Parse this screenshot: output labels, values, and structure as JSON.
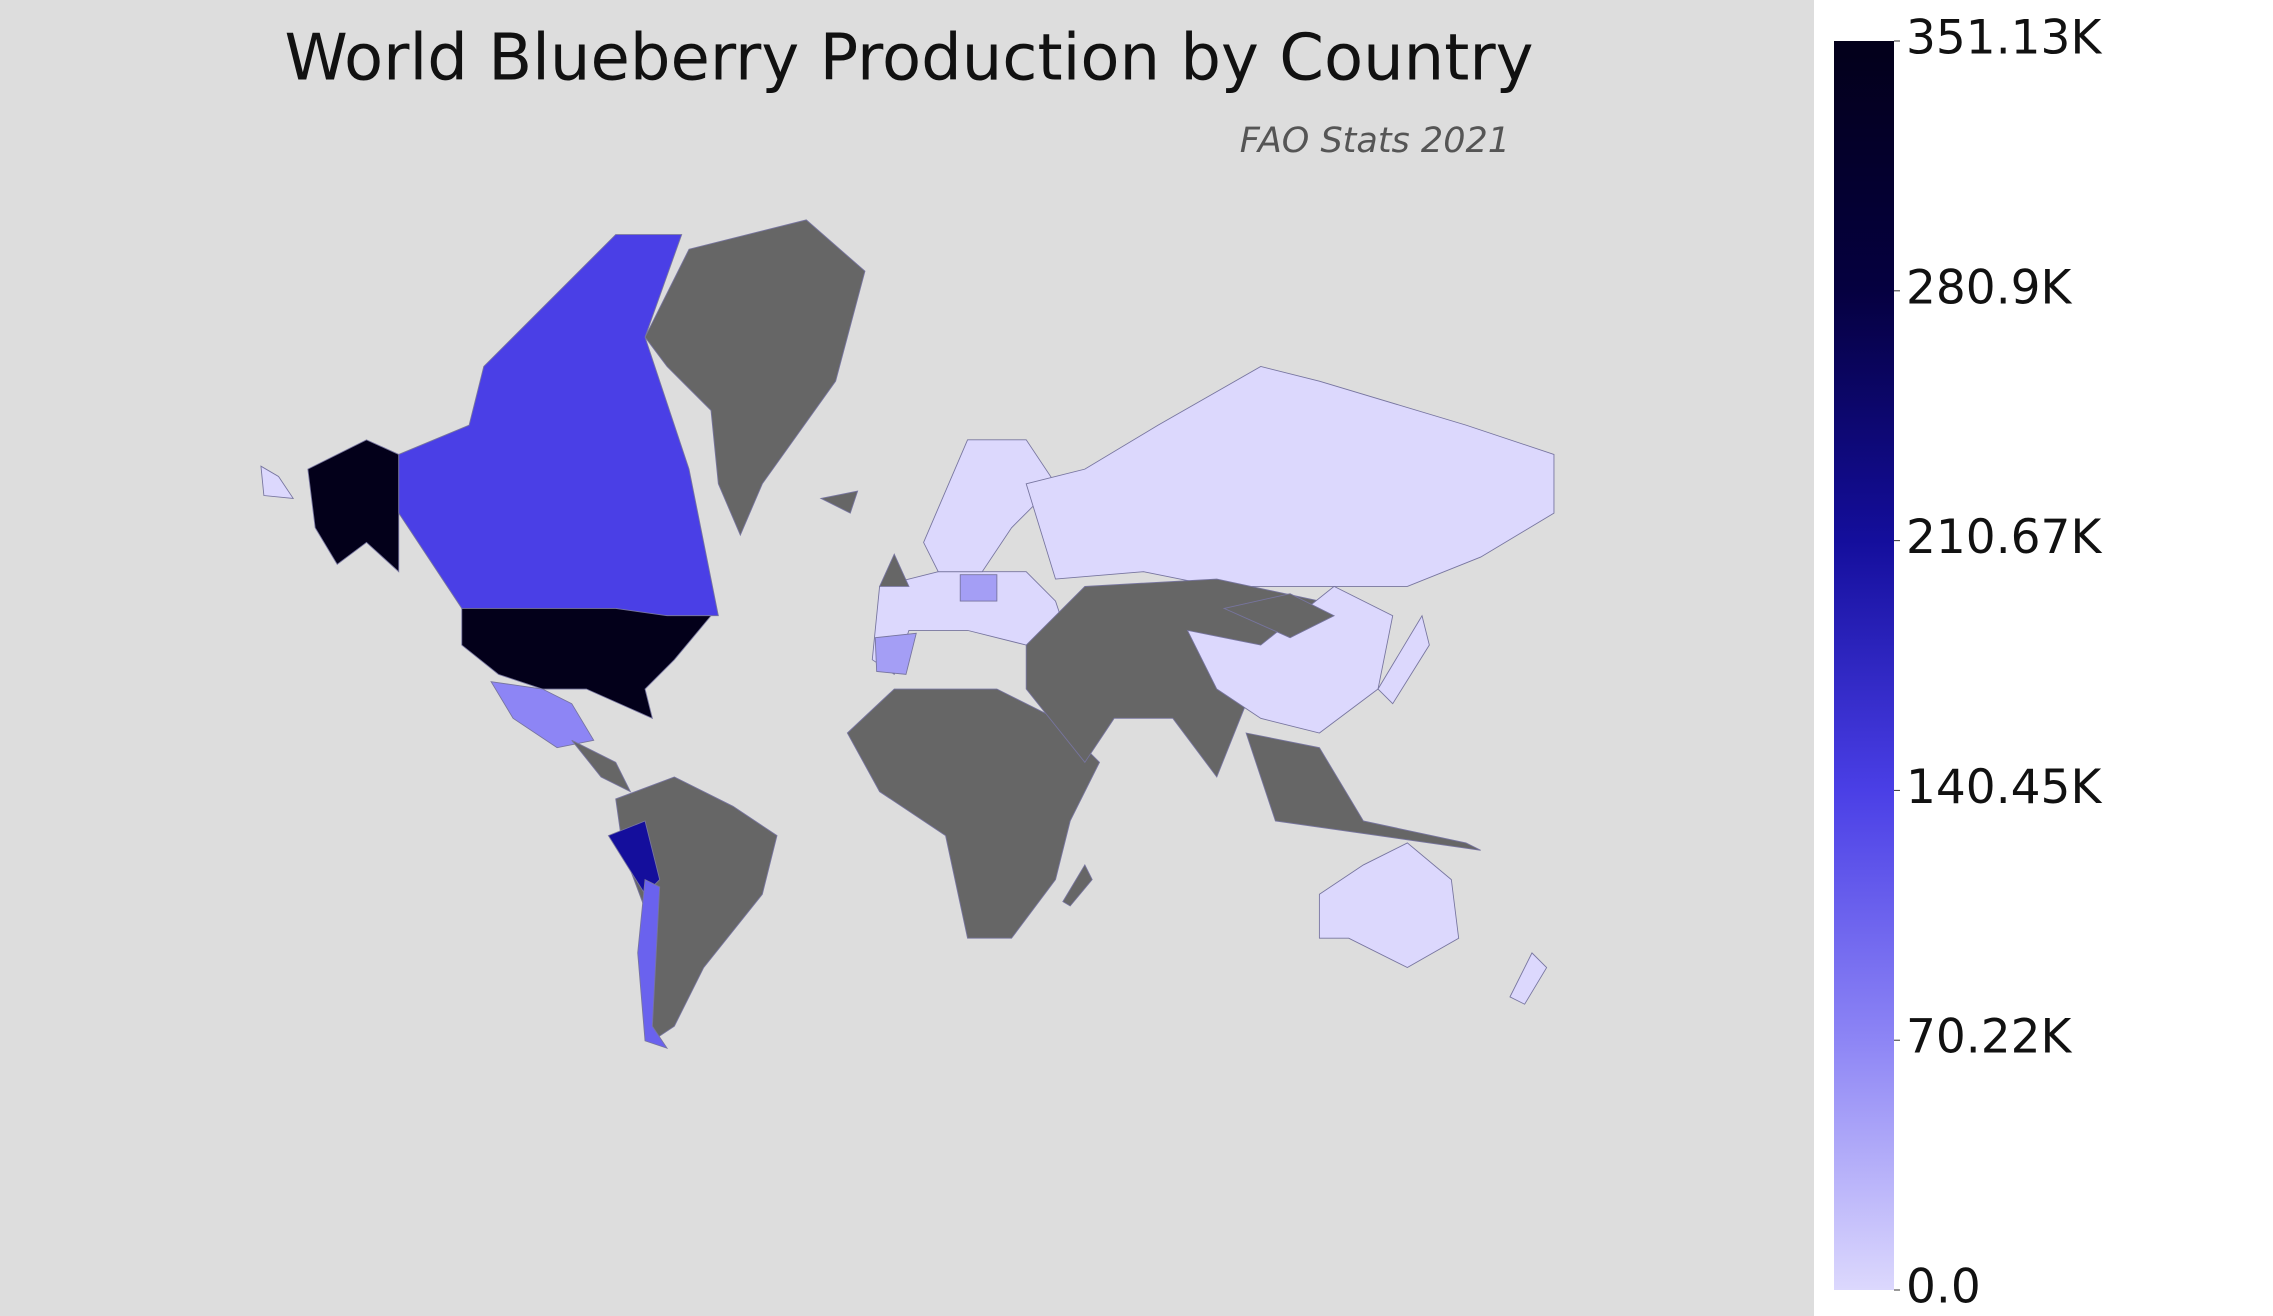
{
  "chart_data": {
    "type": "choropleth",
    "title": "World Blueberry Production by Country",
    "subtitle": "FAO Stats 2021",
    "colorscale": [
      "#dcd8fd",
      "#8d85f5",
      "#4a3fe6",
      "#140e9c",
      "#050040",
      "#03001a"
    ],
    "zlim": [
      0,
      351130
    ],
    "zticks": [
      {
        "value": 0,
        "label": "0.0"
      },
      {
        "value": 70220,
        "label": "70.22K"
      },
      {
        "value": 140450,
        "label": "140.45K"
      },
      {
        "value": 210670,
        "label": "210.67K"
      },
      {
        "value": 280900,
        "label": "280.9K"
      },
      {
        "value": 351130,
        "label": "351.13K"
      }
    ]
  }
}
